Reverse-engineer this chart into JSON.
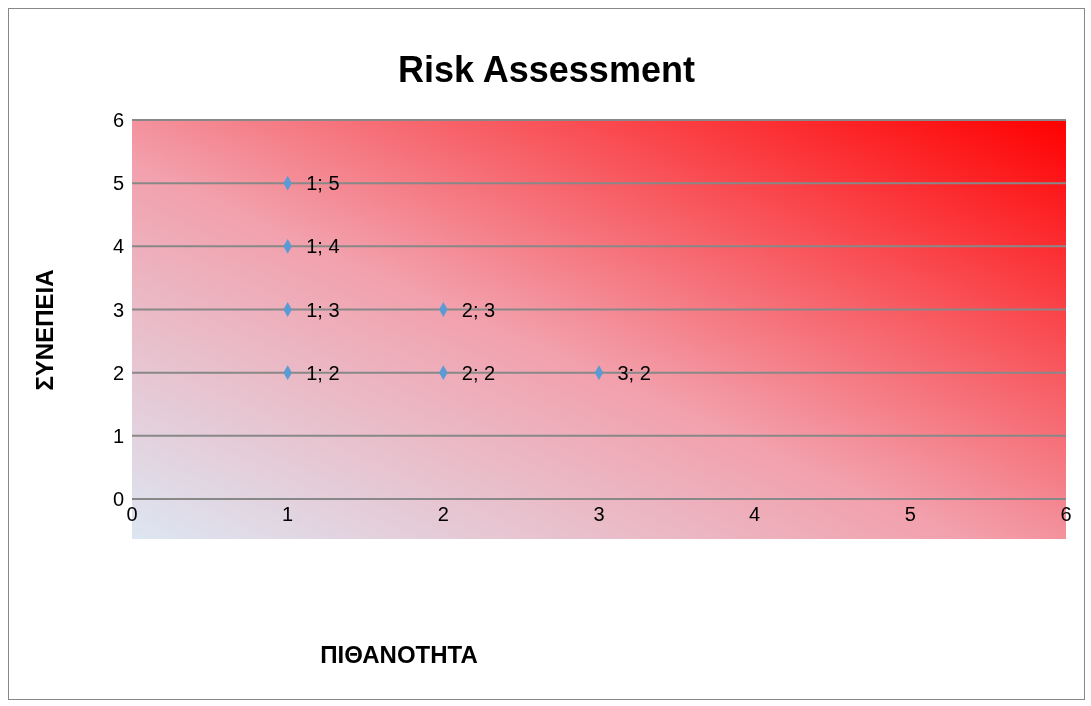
{
  "chart_data": {
    "type": "scatter",
    "title": "Risk Assessment",
    "xlabel": "ΠΙΘΑΝΟΤΗΤΑ",
    "ylabel": "ΣΥΝΕΠΕΙΑ",
    "x": [
      1,
      1,
      1,
      1,
      2,
      2,
      3
    ],
    "values": [
      5,
      4,
      3,
      2,
      3,
      2,
      2
    ],
    "value_labels": [
      "1; 5",
      "1; 4",
      "1; 3",
      "1; 2",
      "2; 3",
      "2; 2",
      "3; 2"
    ],
    "color": "#5b9bd5",
    "marker": "diamond",
    "xlim": [
      0,
      6
    ],
    "xticks": [
      0,
      1,
      2,
      3,
      4,
      5,
      6
    ],
    "ylim": [
      0,
      6
    ],
    "yticks": [
      0,
      1,
      2,
      3,
      4,
      5,
      6
    ],
    "grid": "y"
  }
}
